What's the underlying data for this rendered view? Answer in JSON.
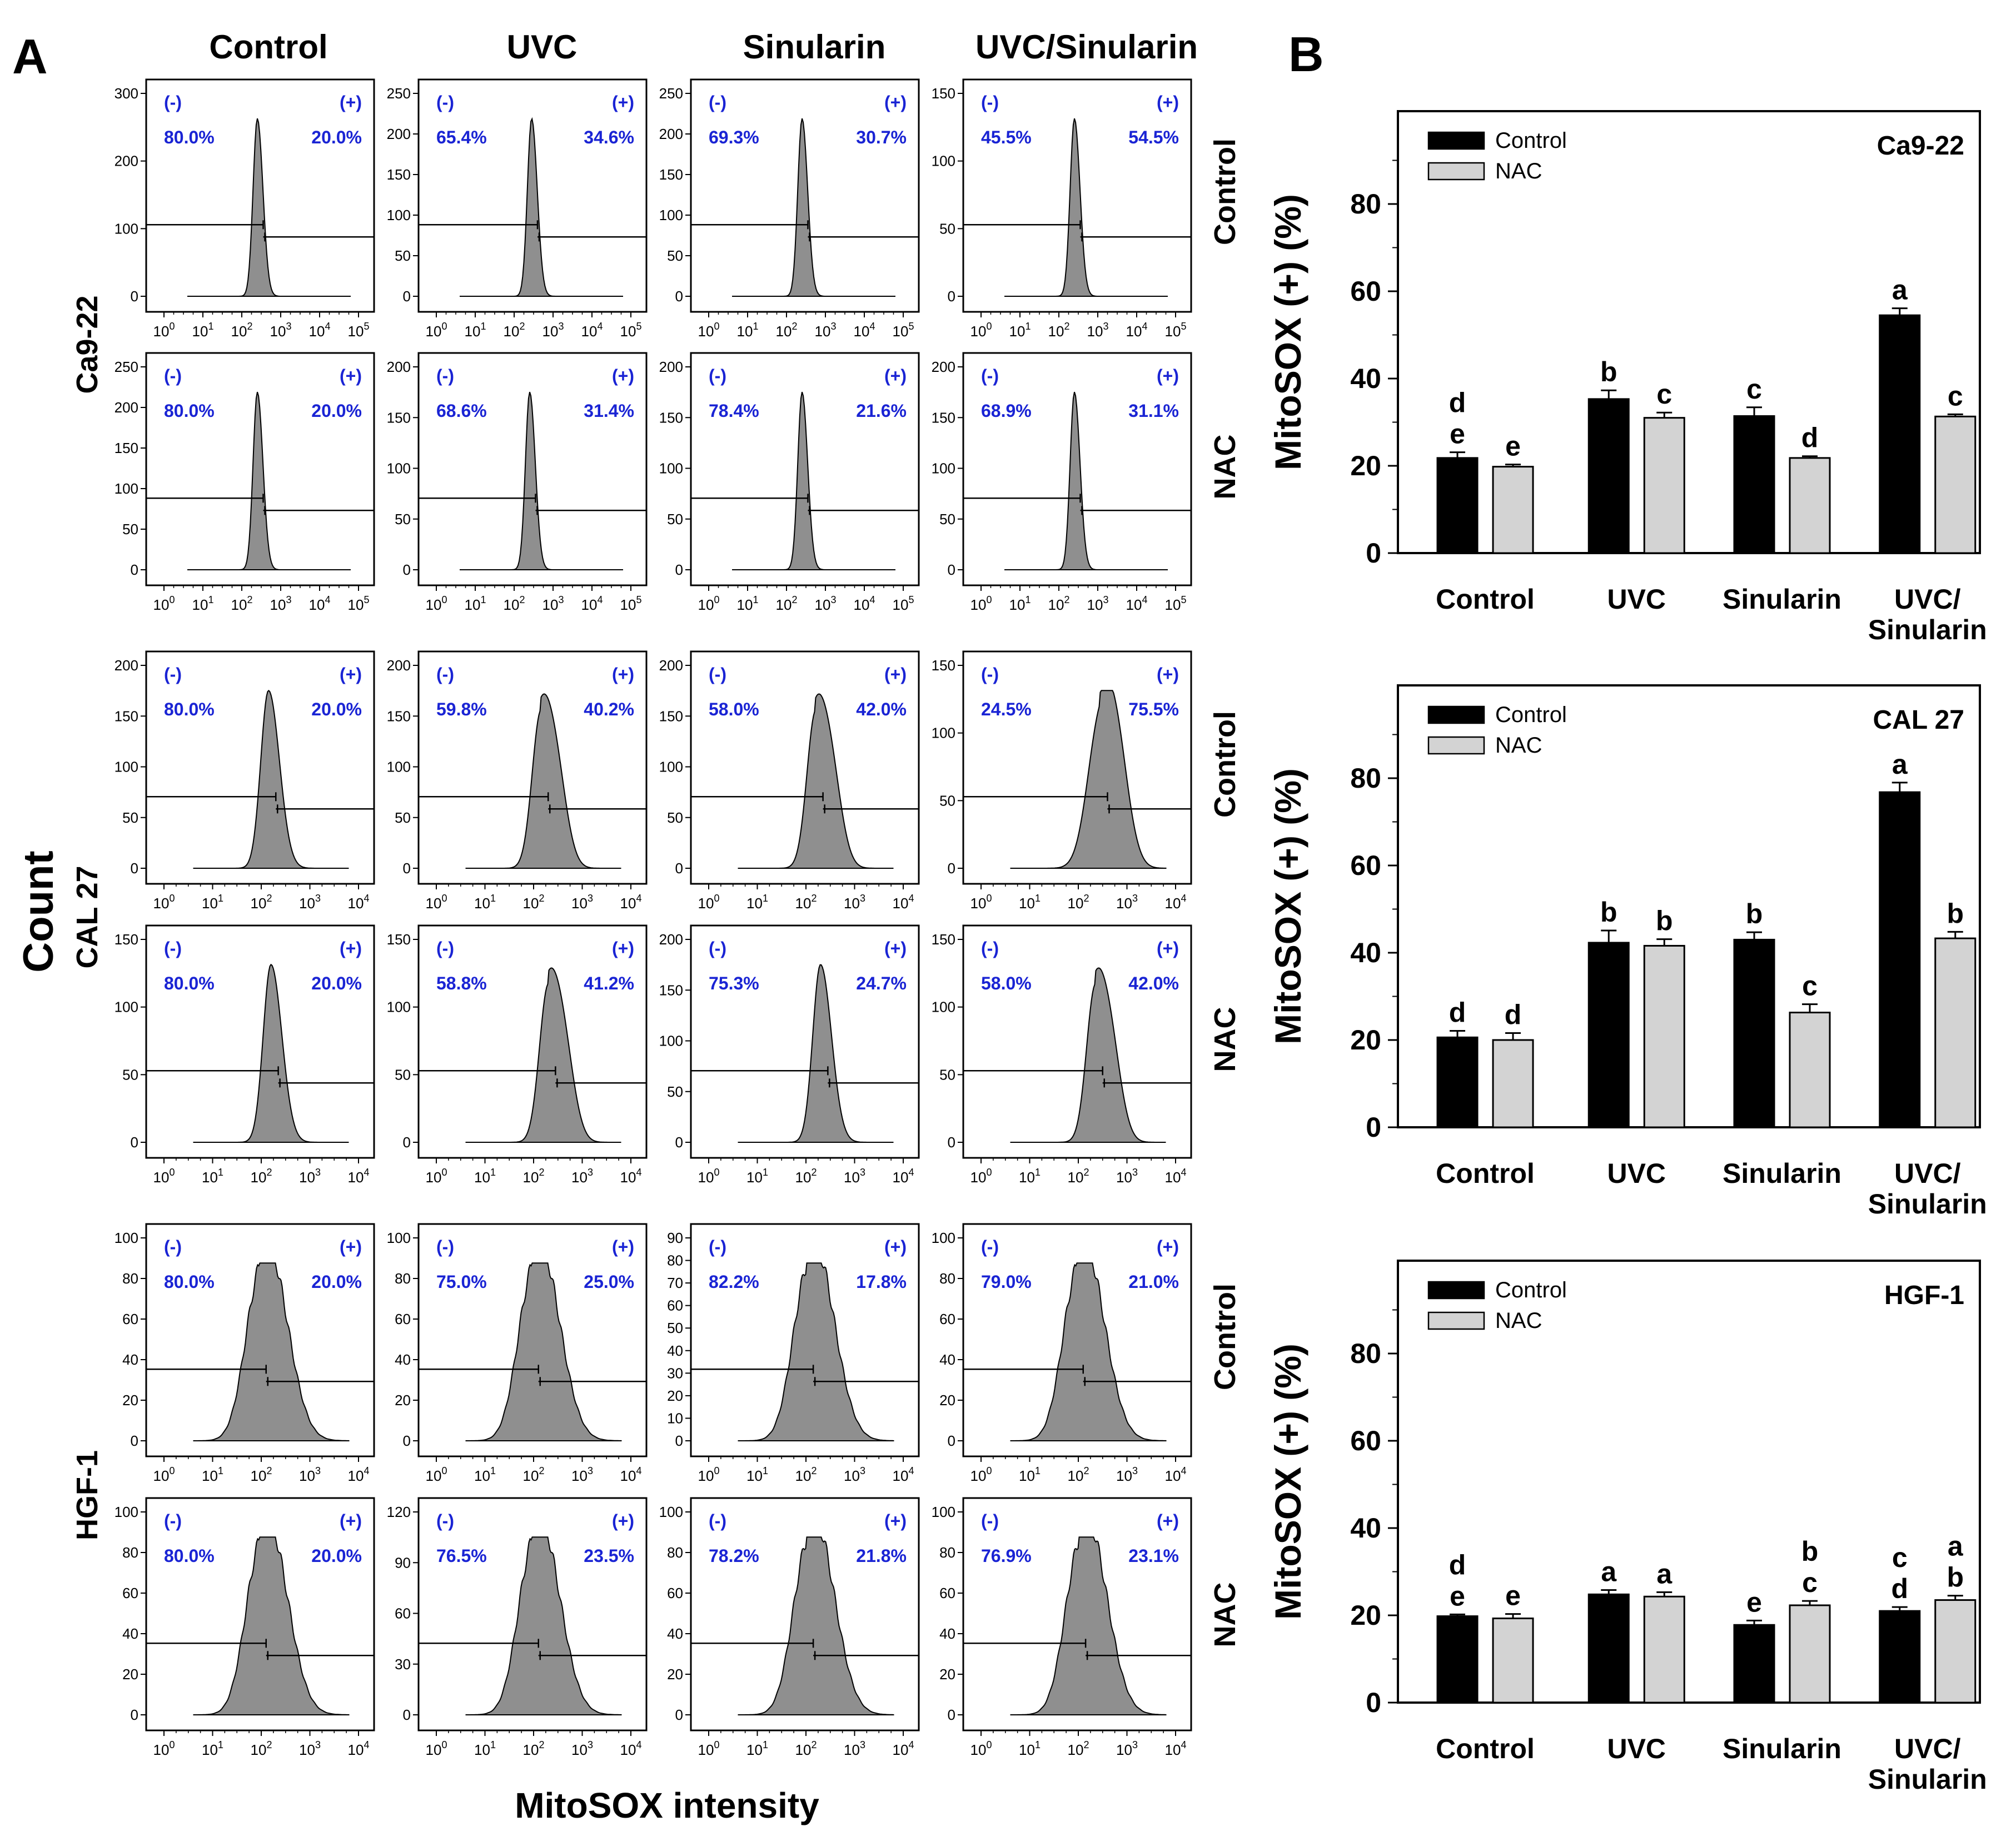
{
  "figure": {
    "panel_a_label": "A",
    "panel_b_label": "B",
    "count_label": "Count",
    "xaxis_label": "MitoSOX intensity",
    "gate_neg_label": "(-)",
    "gate_pos_label": "(+)",
    "column_headers": [
      "Control",
      "UVC",
      "Sinularin",
      "UVC/Sinularin"
    ],
    "row_labels": [
      "Control",
      "NAC",
      "Control",
      "NAC",
      "Control",
      "NAC"
    ],
    "cell_line_labels": [
      "Ca9-22",
      "CAL 27",
      "HGF-1"
    ]
  },
  "chart_data": [
    {
      "type": "histogram-grid",
      "title": "Flow cytometry MitoSOX histograms",
      "xlabel": "MitoSOX intensity",
      "ylabel": "Count",
      "columns": [
        "Control",
        "UVC",
        "Sinularin",
        "UVC/Sinularin"
      ],
      "rows": [
        {
          "cell_line": "Ca9-22",
          "pretreatment": "Control",
          "x_max_exp": 5,
          "panels": [
            {
              "yticks": [
                "0",
                "100",
                "200",
                "300"
              ],
              "ymax": 300,
              "neg": "80.0%",
              "pos": "20.0%",
              "peak_log": 2.4,
              "shape": "narrow"
            },
            {
              "yticks": [
                "0",
                "50",
                "100",
                "150",
                "200",
                "250"
              ],
              "ymax": 250,
              "neg": "65.4%",
              "pos": "34.6%",
              "peak_log": 2.45,
              "shape": "narrow"
            },
            {
              "yticks": [
                "0",
                "50",
                "100",
                "150",
                "200",
                "250"
              ],
              "ymax": 250,
              "neg": "69.3%",
              "pos": "30.7%",
              "peak_log": 2.4,
              "shape": "narrow"
            },
            {
              "yticks": [
                "0",
                "50",
                "100",
                "150"
              ],
              "ymax": 150,
              "neg": "45.5%",
              "pos": "54.5%",
              "peak_log": 2.4,
              "shape": "narrow"
            }
          ]
        },
        {
          "cell_line": "Ca9-22",
          "pretreatment": "NAC",
          "x_max_exp": 5,
          "panels": [
            {
              "yticks": [
                "0",
                "50",
                "100",
                "150",
                "200",
                "250"
              ],
              "ymax": 250,
              "neg": "80.0%",
              "pos": "20.0%",
              "peak_log": 2.4,
              "shape": "narrow"
            },
            {
              "yticks": [
                "0",
                "50",
                "100",
                "150",
                "200"
              ],
              "ymax": 200,
              "neg": "68.6%",
              "pos": "31.4%",
              "peak_log": 2.4,
              "shape": "narrow"
            },
            {
              "yticks": [
                "0",
                "50",
                "100",
                "150",
                "200"
              ],
              "ymax": 200,
              "neg": "78.4%",
              "pos": "21.6%",
              "peak_log": 2.4,
              "shape": "narrow"
            },
            {
              "yticks": [
                "0",
                "50",
                "100",
                "150",
                "200"
              ],
              "ymax": 200,
              "neg": "68.9%",
              "pos": "31.1%",
              "peak_log": 2.4,
              "shape": "narrow"
            }
          ]
        },
        {
          "cell_line": "CAL 27",
          "pretreatment": "Control",
          "x_max_exp": 4,
          "panels": [
            {
              "yticks": [
                "0",
                "50",
                "100",
                "150",
                "200"
              ],
              "ymax": 200,
              "neg": "80.0%",
              "pos": "20.0%",
              "peak_log": 2.15,
              "shape": "medium"
            },
            {
              "yticks": [
                "0",
                "50",
                "100",
                "150",
                "200"
              ],
              "ymax": 200,
              "neg": "59.8%",
              "pos": "40.2%",
              "peak_log": 2.15,
              "shape": "shoulder"
            },
            {
              "yticks": [
                "0",
                "50",
                "100",
                "150",
                "200"
              ],
              "ymax": 200,
              "neg": "58.0%",
              "pos": "42.0%",
              "peak_log": 2.2,
              "shape": "shoulder"
            },
            {
              "yticks": [
                "0",
                "50",
                "100",
                "150"
              ],
              "ymax": 150,
              "neg": "24.5%",
              "pos": "75.5%",
              "peak_log": 2.45,
              "shape": "broad"
            }
          ]
        },
        {
          "cell_line": "CAL 27",
          "pretreatment": "NAC",
          "x_max_exp": 4,
          "panels": [
            {
              "yticks": [
                "0",
                "50",
                "100",
                "150"
              ],
              "ymax": 150,
              "neg": "80.0%",
              "pos": "20.0%",
              "peak_log": 2.2,
              "shape": "medium"
            },
            {
              "yticks": [
                "0",
                "50",
                "100",
                "150"
              ],
              "ymax": 150,
              "neg": "58.8%",
              "pos": "41.2%",
              "peak_log": 2.3,
              "shape": "shoulder"
            },
            {
              "yticks": [
                "0",
                "50",
                "100",
                "150",
                "200"
              ],
              "ymax": 200,
              "neg": "75.3%",
              "pos": "24.7%",
              "peak_log": 2.3,
              "shape": "medium"
            },
            {
              "yticks": [
                "0",
                "50",
                "100",
                "150"
              ],
              "ymax": 150,
              "neg": "58.0%",
              "pos": "42.0%",
              "peak_log": 2.35,
              "shape": "shoulder"
            }
          ]
        },
        {
          "cell_line": "HGF-1",
          "pretreatment": "Control",
          "x_max_exp": 4,
          "panels": [
            {
              "yticks": [
                "0",
                "20",
                "40",
                "60",
                "80",
                "100"
              ],
              "ymax": 100,
              "neg": "80.0%",
              "pos": "20.0%",
              "peak_log": 1.95,
              "shape": "wide"
            },
            {
              "yticks": [
                "0",
                "20",
                "40",
                "60",
                "80",
                "100"
              ],
              "ymax": 100,
              "neg": "75.0%",
              "pos": "25.0%",
              "peak_log": 1.95,
              "shape": "wide"
            },
            {
              "yticks": [
                "0",
                "10",
                "20",
                "30",
                "40",
                "50",
                "60",
                "70",
                "80",
                "90"
              ],
              "ymax": 90,
              "neg": "82.2%",
              "pos": "17.8%",
              "peak_log": 2.0,
              "shape": "wide"
            },
            {
              "yticks": [
                "0",
                "20",
                "40",
                "60",
                "80",
                "100"
              ],
              "ymax": 100,
              "neg": "79.0%",
              "pos": "21.0%",
              "peak_log": 1.95,
              "shape": "wide"
            }
          ]
        },
        {
          "cell_line": "HGF-1",
          "pretreatment": "NAC",
          "x_max_exp": 4,
          "panels": [
            {
              "yticks": [
                "0",
                "20",
                "40",
                "60",
                "80",
                "100"
              ],
              "ymax": 100,
              "neg": "80.0%",
              "pos": "20.0%",
              "peak_log": 1.95,
              "shape": "wide"
            },
            {
              "yticks": [
                "0",
                "30",
                "60",
                "90",
                "120"
              ],
              "ymax": 120,
              "neg": "76.5%",
              "pos": "23.5%",
              "peak_log": 1.95,
              "shape": "wide"
            },
            {
              "yticks": [
                "0",
                "20",
                "40",
                "60",
                "80",
                "100"
              ],
              "ymax": 100,
              "neg": "78.2%",
              "pos": "21.8%",
              "peak_log": 2.0,
              "shape": "wide"
            },
            {
              "yticks": [
                "0",
                "20",
                "40",
                "60",
                "80",
                "100"
              ],
              "ymax": 100,
              "neg": "76.9%",
              "pos": "23.1%",
              "peak_log": 2.0,
              "shape": "wide"
            }
          ]
        }
      ]
    },
    {
      "type": "bar",
      "title": "Ca9-22",
      "ylabel": "MitoSOX (+) (%)",
      "ylim": [
        0,
        100
      ],
      "yticks": [
        0,
        20,
        40,
        60,
        80
      ],
      "categories": [
        "Control",
        "UVC",
        "Sinularin",
        "UVC/Sinularin"
      ],
      "category_lines": [
        [
          "Control"
        ],
        [
          "UVC"
        ],
        [
          "Sinularin"
        ],
        [
          "UVC/",
          "Sinularin"
        ]
      ],
      "legend": [
        "Control",
        "NAC"
      ],
      "series": [
        {
          "name": "Control",
          "color": "#000000",
          "values": [
            21.8,
            35.3,
            31.4,
            54.5
          ],
          "errors": [
            1.3,
            2.0,
            2.0,
            1.6
          ],
          "letters": [
            [
              "d",
              "e"
            ],
            [
              "b"
            ],
            [
              "c"
            ],
            [
              "a"
            ]
          ]
        },
        {
          "name": "NAC",
          "color": "#d3d3d3",
          "values": [
            19.8,
            31.0,
            21.8,
            31.3
          ],
          "errors": [
            0.5,
            1.2,
            0.4,
            0.5
          ],
          "letters": [
            [
              "e"
            ],
            [
              "c"
            ],
            [
              "d"
            ],
            [
              "c"
            ]
          ]
        }
      ]
    },
    {
      "type": "bar",
      "title": "CAL 27",
      "ylabel": "MitoSOX (+) (%)",
      "ylim": [
        0,
        100
      ],
      "yticks": [
        0,
        20,
        40,
        60,
        80
      ],
      "categories": [
        "Control",
        "UVC",
        "Sinularin",
        "UVC/Sinularin"
      ],
      "category_lines": [
        [
          "Control"
        ],
        [
          "UVC"
        ],
        [
          "Sinularin"
        ],
        [
          "UVC/",
          "Sinularin"
        ]
      ],
      "legend": [
        "Control",
        "NAC"
      ],
      "series": [
        {
          "name": "Control",
          "color": "#000000",
          "values": [
            20.6,
            42.3,
            43.0,
            76.8
          ],
          "errors": [
            1.5,
            2.8,
            1.7,
            2.2
          ],
          "letters": [
            [
              "d"
            ],
            [
              "b"
            ],
            [
              "b"
            ],
            [
              "a"
            ]
          ]
        },
        {
          "name": "NAC",
          "color": "#d3d3d3",
          "values": [
            20.0,
            41.6,
            26.3,
            43.3
          ],
          "errors": [
            1.6,
            1.5,
            1.9,
            1.5
          ],
          "letters": [
            [
              "d"
            ],
            [
              "b"
            ],
            [
              "c"
            ],
            [
              "b"
            ]
          ]
        }
      ]
    },
    {
      "type": "bar",
      "title": "HGF-1",
      "ylabel": "MitoSOX (+) (%)",
      "ylim": [
        0,
        100
      ],
      "yticks": [
        0,
        20,
        40,
        60,
        80
      ],
      "categories": [
        "Control",
        "UVC",
        "Sinularin",
        "UVC/Sinularin"
      ],
      "category_lines": [
        [
          "Control"
        ],
        [
          "UVC"
        ],
        [
          "Sinularin"
        ],
        [
          "UVC/",
          "Sinularin"
        ]
      ],
      "legend": [
        "Control",
        "NAC"
      ],
      "series": [
        {
          "name": "Control",
          "color": "#000000",
          "values": [
            19.8,
            24.8,
            17.8,
            21.0
          ],
          "errors": [
            0.4,
            1.0,
            1.0,
            0.9
          ],
          "letters": [
            [
              "d",
              "e"
            ],
            [
              "a"
            ],
            [
              "e"
            ],
            [
              "c",
              "d"
            ]
          ]
        },
        {
          "name": "NAC",
          "color": "#d3d3d3",
          "values": [
            19.3,
            24.3,
            22.3,
            23.5
          ],
          "errors": [
            1.0,
            1.0,
            1.0,
            1.0
          ],
          "letters": [
            [
              "e"
            ],
            [
              "a"
            ],
            [
              "b",
              "c"
            ],
            [
              "a",
              "b"
            ]
          ]
        }
      ]
    }
  ]
}
